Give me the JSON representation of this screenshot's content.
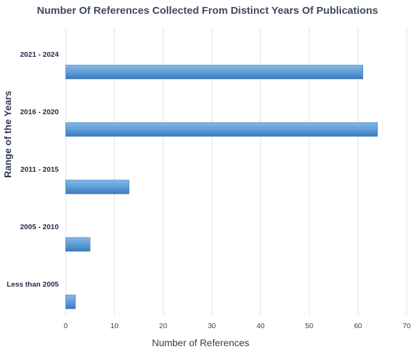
{
  "chart_data": {
    "type": "bar",
    "orientation": "horizontal",
    "title": "Number Of References Collected From Distinct Years Of Publications",
    "xlabel": "Number of References",
    "ylabel": "Range of the Years",
    "categories": [
      "2021 - 2024",
      "2016 - 2020",
      "2011 - 2015",
      "2005 - 2010",
      "Less than 2005"
    ],
    "values": [
      61,
      64,
      13,
      5,
      2
    ],
    "xlim": [
      0,
      70
    ],
    "xticks": [
      0,
      10,
      20,
      30,
      40,
      50,
      60,
      70
    ],
    "grid": true,
    "bar_color": "#5b9bd5",
    "bar_color_dark": "#3c78b8",
    "bar_color_light": "#86b8e6"
  }
}
